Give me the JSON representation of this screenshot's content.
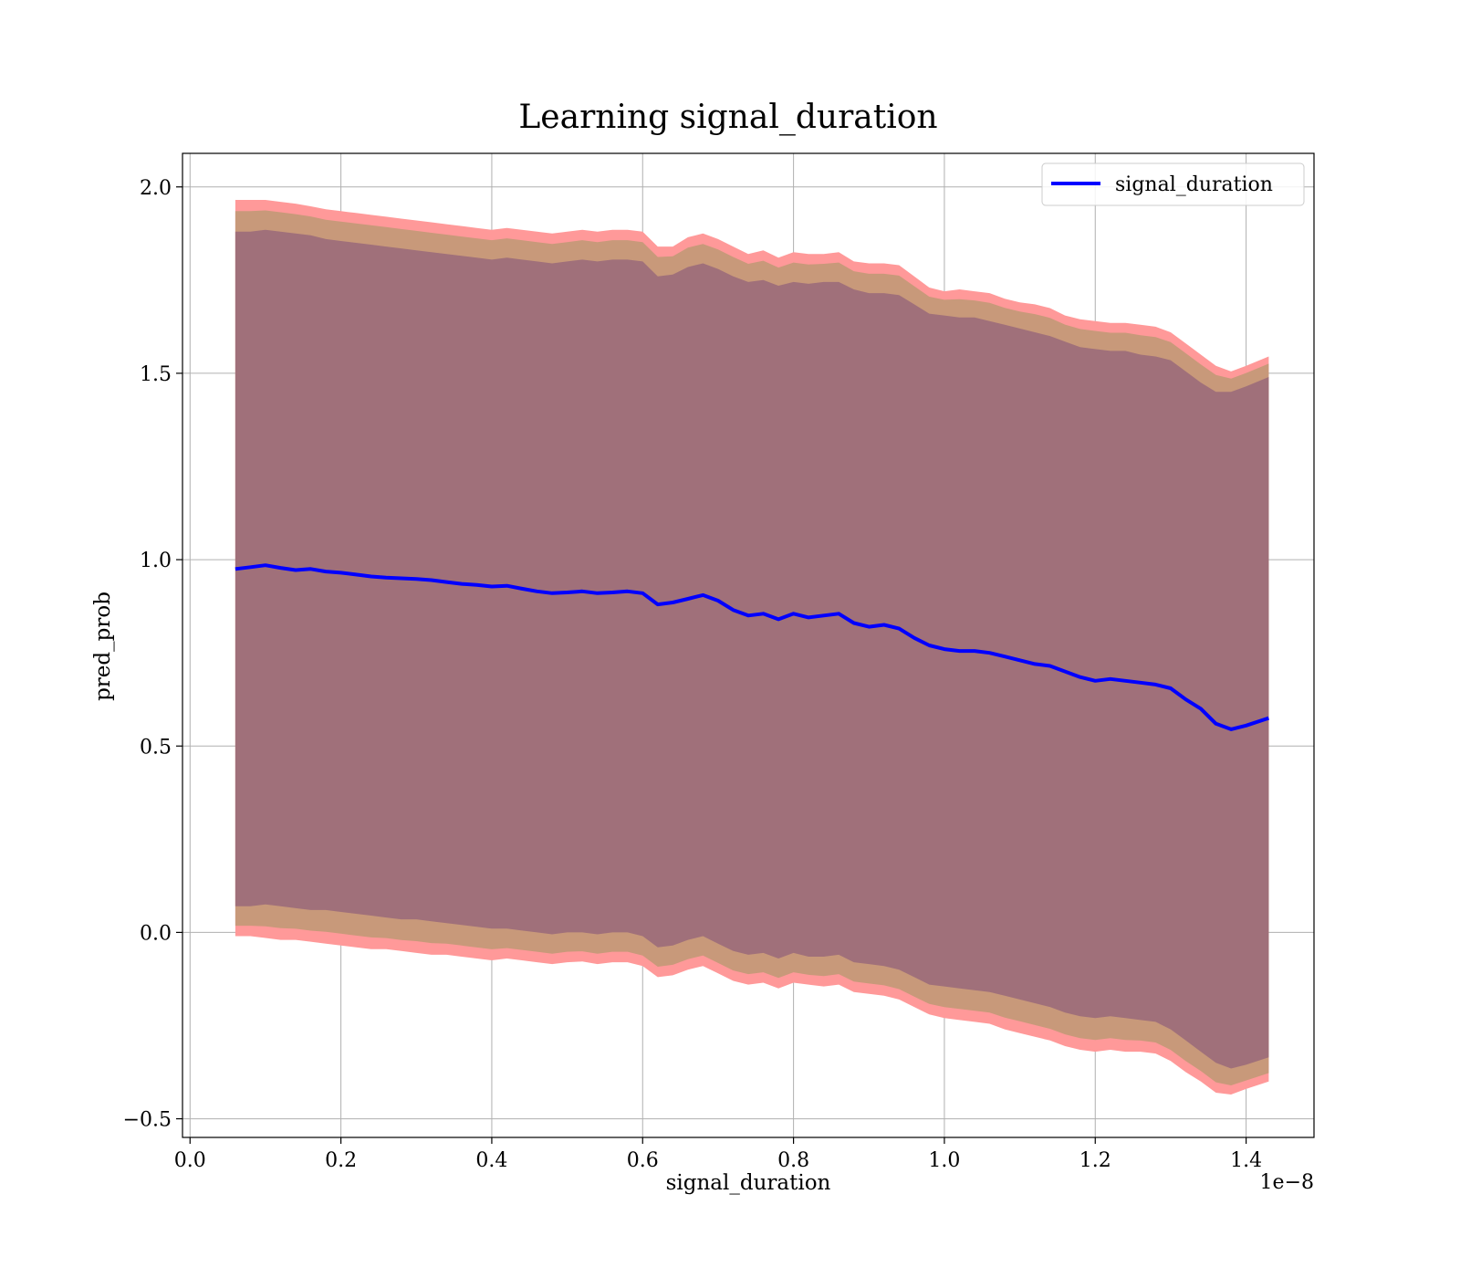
{
  "chart_data": {
    "type": "line",
    "title": "Learning signal_duration",
    "xlabel": "signal_duration",
    "ylabel": "pred_prob",
    "x_offset_label": "1e−8",
    "xlim": [
      -0.01,
      1.49
    ],
    "ylim": [
      -0.55,
      2.09
    ],
    "x_ticks": [
      0.0,
      0.2,
      0.4,
      0.6,
      0.8,
      1.0,
      1.2,
      1.4
    ],
    "x_tick_labels": [
      "0.0",
      "0.2",
      "0.4",
      "0.6",
      "0.8",
      "1.0",
      "1.2",
      "1.4"
    ],
    "y_ticks": [
      -0.5,
      0.0,
      0.5,
      1.0,
      1.5,
      2.0
    ],
    "y_tick_labels": [
      "−0.5",
      "0.0",
      "0.5",
      "1.0",
      "1.5",
      "2.0"
    ],
    "grid": true,
    "legend": {
      "position": "top-right",
      "entries": [
        "signal_duration"
      ]
    },
    "colors": {
      "line": "#0000ff",
      "band_outer": "#ff9999",
      "band_middle": "#c8997a",
      "band_inner": "#a0707a"
    },
    "series": [
      {
        "name": "signal_duration",
        "x": [
          0.06,
          0.08,
          0.1,
          0.12,
          0.14,
          0.16,
          0.18,
          0.2,
          0.22,
          0.24,
          0.26,
          0.28,
          0.3,
          0.32,
          0.34,
          0.36,
          0.38,
          0.4,
          0.42,
          0.44,
          0.46,
          0.48,
          0.5,
          0.52,
          0.54,
          0.56,
          0.58,
          0.6,
          0.62,
          0.64,
          0.66,
          0.68,
          0.7,
          0.72,
          0.74,
          0.76,
          0.78,
          0.8,
          0.82,
          0.84,
          0.86,
          0.88,
          0.9,
          0.92,
          0.94,
          0.96,
          0.98,
          1.0,
          1.02,
          1.04,
          1.06,
          1.08,
          1.1,
          1.12,
          1.14,
          1.16,
          1.18,
          1.2,
          1.22,
          1.24,
          1.26,
          1.28,
          1.3,
          1.32,
          1.34,
          1.36,
          1.38,
          1.4,
          1.43
        ],
        "values": [
          0.975,
          0.98,
          0.985,
          0.978,
          0.972,
          0.975,
          0.968,
          0.965,
          0.96,
          0.955,
          0.952,
          0.95,
          0.948,
          0.945,
          0.94,
          0.935,
          0.932,
          0.928,
          0.93,
          0.922,
          0.915,
          0.91,
          0.912,
          0.915,
          0.91,
          0.912,
          0.915,
          0.91,
          0.88,
          0.885,
          0.895,
          0.905,
          0.89,
          0.865,
          0.85,
          0.855,
          0.84,
          0.855,
          0.845,
          0.85,
          0.855,
          0.83,
          0.82,
          0.825,
          0.815,
          0.79,
          0.77,
          0.76,
          0.755,
          0.755,
          0.75,
          0.74,
          0.73,
          0.72,
          0.715,
          0.7,
          0.685,
          0.675,
          0.68,
          0.675,
          0.67,
          0.665,
          0.655,
          0.625,
          0.6,
          0.56,
          0.545,
          0.555,
          0.575
        ],
        "band_upper_outer": [
          1.965,
          1.965,
          1.965,
          1.96,
          1.955,
          1.948,
          1.94,
          1.935,
          1.93,
          1.925,
          1.92,
          1.915,
          1.91,
          1.905,
          1.9,
          1.895,
          1.89,
          1.885,
          1.89,
          1.885,
          1.88,
          1.875,
          1.88,
          1.885,
          1.88,
          1.885,
          1.885,
          1.88,
          1.84,
          1.84,
          1.865,
          1.875,
          1.86,
          1.84,
          1.82,
          1.83,
          1.81,
          1.825,
          1.82,
          1.82,
          1.825,
          1.8,
          1.795,
          1.795,
          1.79,
          1.76,
          1.73,
          1.72,
          1.725,
          1.72,
          1.715,
          1.7,
          1.69,
          1.685,
          1.675,
          1.655,
          1.645,
          1.64,
          1.635,
          1.635,
          1.63,
          1.625,
          1.61,
          1.58,
          1.55,
          1.52,
          1.505,
          1.52,
          1.545
        ],
        "band_lower_outer": [
          -0.01,
          -0.01,
          -0.015,
          -0.02,
          -0.02,
          -0.025,
          -0.03,
          -0.035,
          -0.04,
          -0.045,
          -0.045,
          -0.05,
          -0.055,
          -0.06,
          -0.06,
          -0.065,
          -0.07,
          -0.075,
          -0.07,
          -0.075,
          -0.08,
          -0.085,
          -0.08,
          -0.078,
          -0.085,
          -0.08,
          -0.08,
          -0.09,
          -0.12,
          -0.115,
          -0.1,
          -0.09,
          -0.11,
          -0.13,
          -0.14,
          -0.135,
          -0.15,
          -0.135,
          -0.14,
          -0.145,
          -0.14,
          -0.16,
          -0.165,
          -0.17,
          -0.18,
          -0.2,
          -0.22,
          -0.23,
          -0.235,
          -0.24,
          -0.245,
          -0.26,
          -0.27,
          -0.28,
          -0.29,
          -0.305,
          -0.315,
          -0.32,
          -0.315,
          -0.32,
          -0.32,
          -0.325,
          -0.345,
          -0.375,
          -0.4,
          -0.43,
          -0.435,
          -0.42,
          -0.4
        ],
        "band_upper_inner": [
          1.88,
          1.88,
          1.885,
          1.88,
          1.875,
          1.87,
          1.86,
          1.855,
          1.85,
          1.845,
          1.84,
          1.835,
          1.83,
          1.825,
          1.82,
          1.815,
          1.81,
          1.805,
          1.81,
          1.805,
          1.8,
          1.795,
          1.8,
          1.805,
          1.8,
          1.805,
          1.805,
          1.8,
          1.76,
          1.765,
          1.785,
          1.795,
          1.78,
          1.76,
          1.745,
          1.75,
          1.735,
          1.745,
          1.74,
          1.745,
          1.745,
          1.725,
          1.715,
          1.715,
          1.71,
          1.685,
          1.66,
          1.655,
          1.65,
          1.65,
          1.64,
          1.63,
          1.62,
          1.61,
          1.6,
          1.585,
          1.57,
          1.565,
          1.56,
          1.56,
          1.55,
          1.545,
          1.535,
          1.505,
          1.475,
          1.45,
          1.45,
          1.465,
          1.49
        ],
        "band_lower_inner": [
          0.07,
          0.07,
          0.075,
          0.07,
          0.065,
          0.06,
          0.06,
          0.055,
          0.05,
          0.045,
          0.04,
          0.035,
          0.035,
          0.03,
          0.025,
          0.02,
          0.015,
          0.01,
          0.01,
          0.005,
          0.0,
          -0.005,
          0.0,
          0.0,
          -0.005,
          0.0,
          0.0,
          -0.01,
          -0.04,
          -0.035,
          -0.02,
          -0.01,
          -0.03,
          -0.05,
          -0.06,
          -0.055,
          -0.07,
          -0.055,
          -0.065,
          -0.065,
          -0.06,
          -0.08,
          -0.085,
          -0.09,
          -0.1,
          -0.12,
          -0.14,
          -0.145,
          -0.15,
          -0.155,
          -0.16,
          -0.17,
          -0.18,
          -0.19,
          -0.2,
          -0.215,
          -0.225,
          -0.23,
          -0.225,
          -0.23,
          -0.235,
          -0.24,
          -0.26,
          -0.29,
          -0.32,
          -0.35,
          -0.365,
          -0.355,
          -0.335
        ]
      }
    ]
  }
}
